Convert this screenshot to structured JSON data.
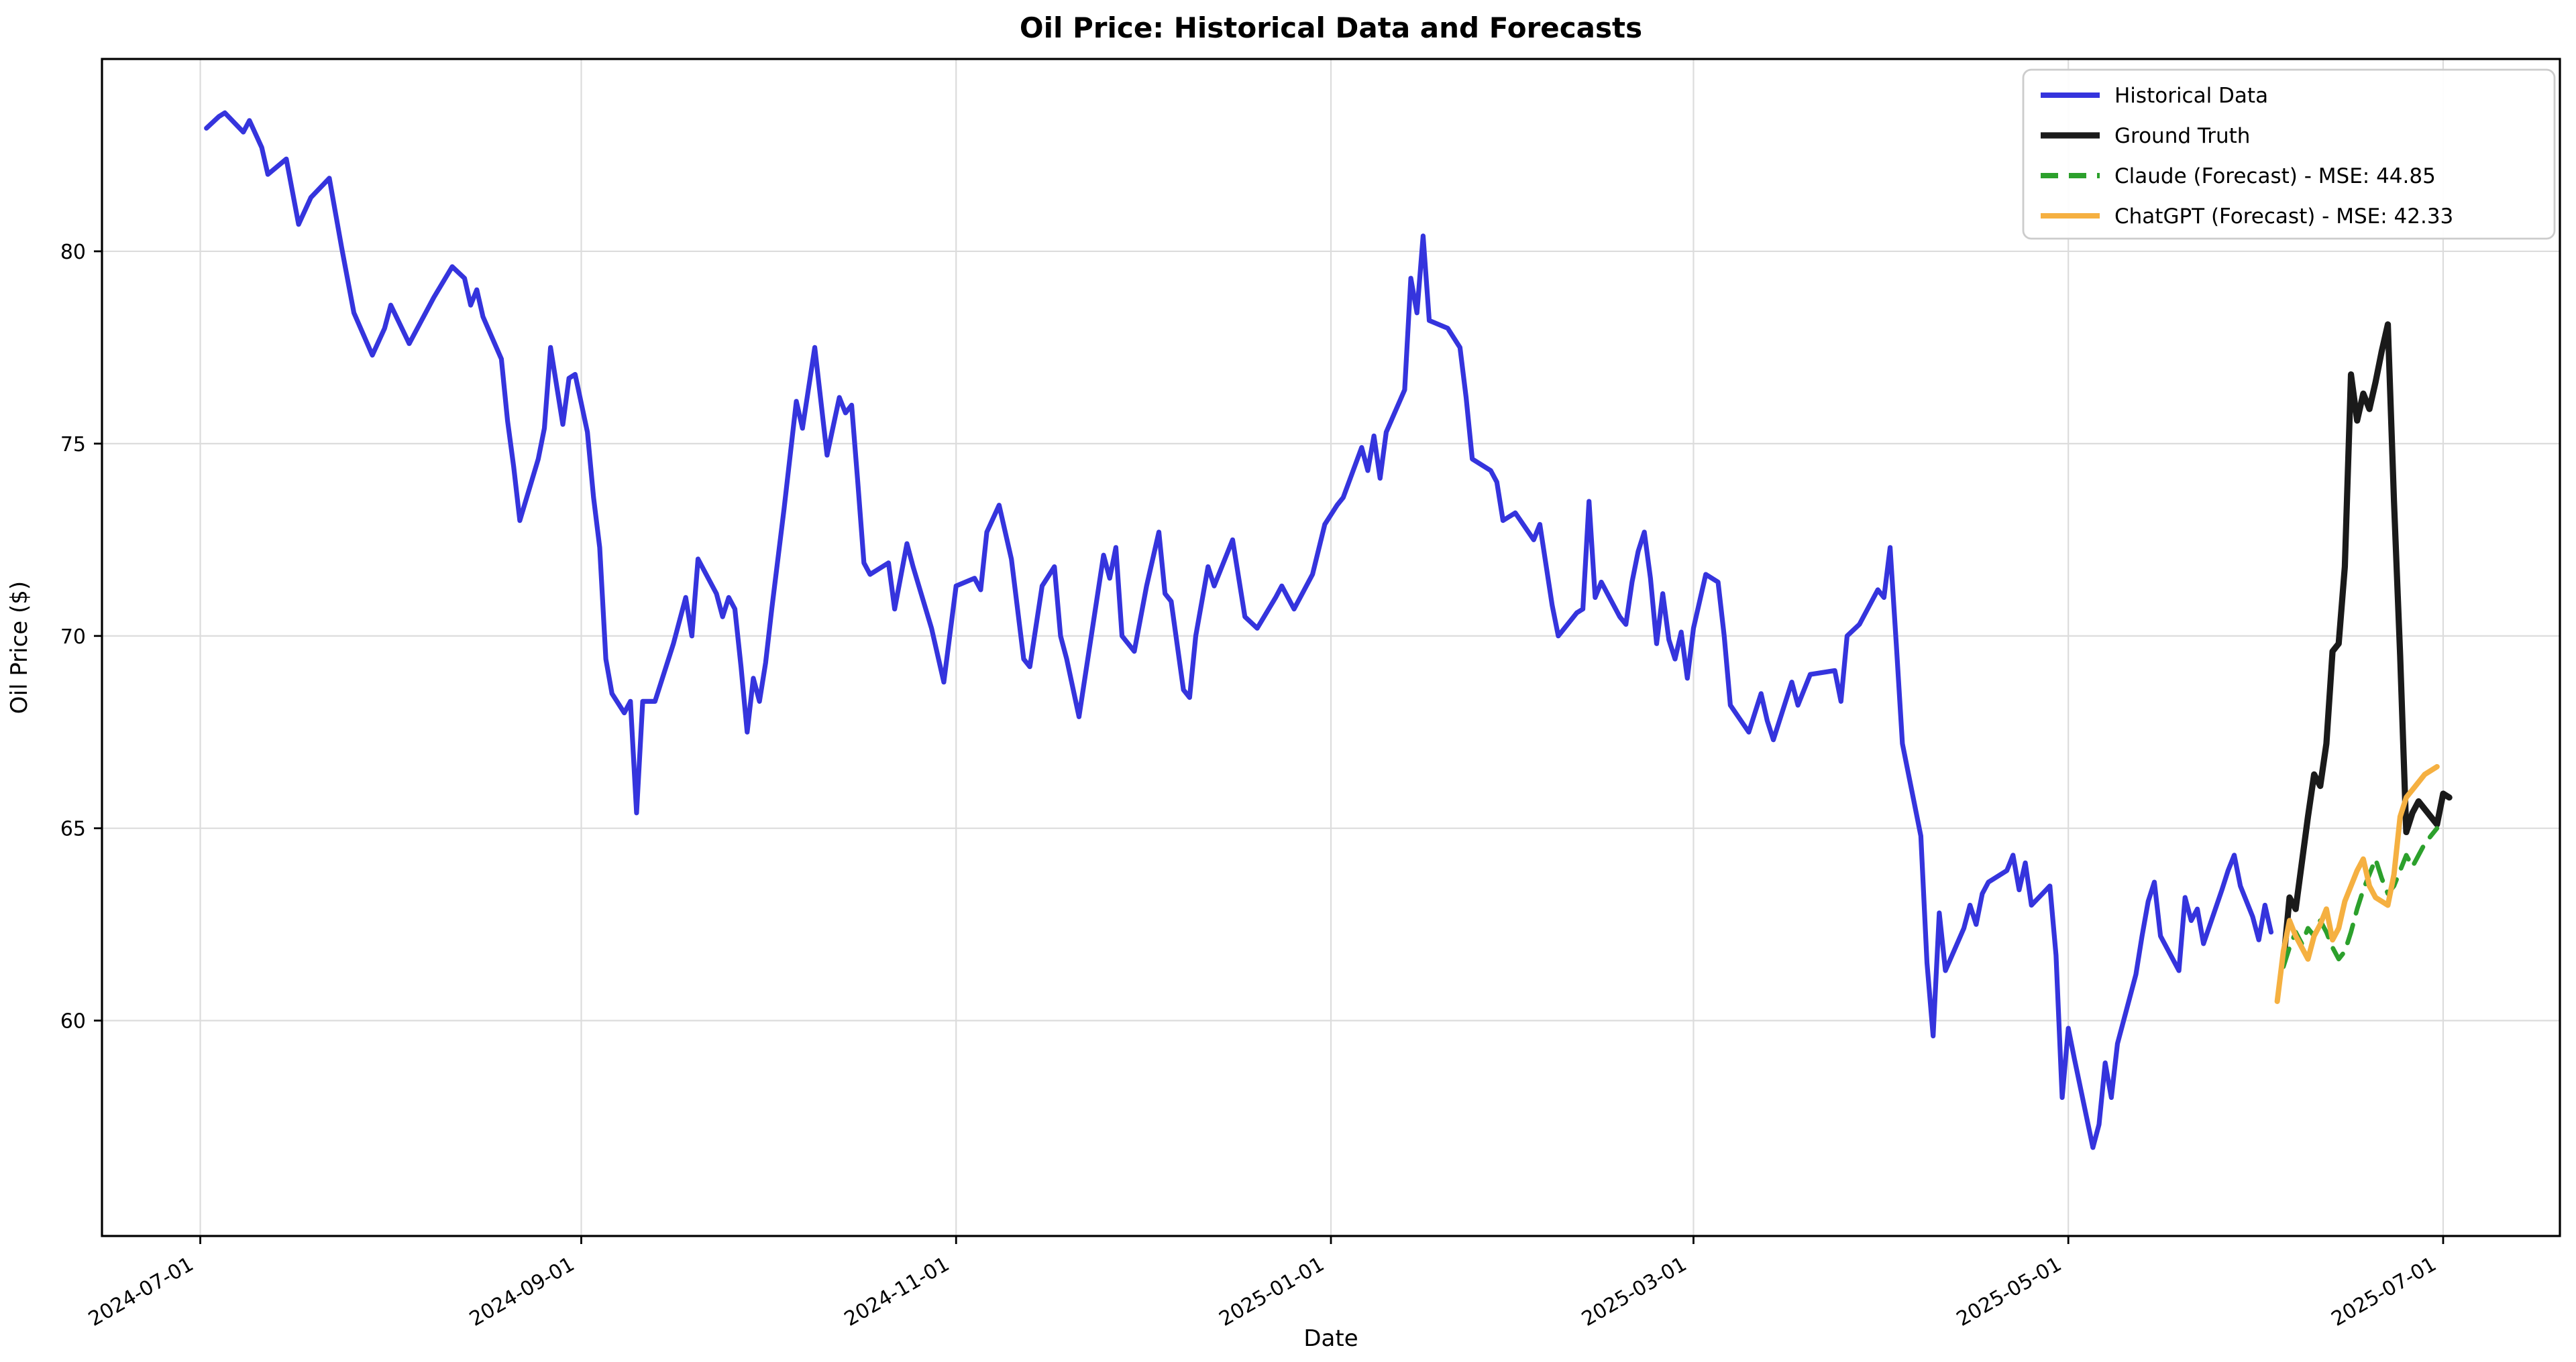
{
  "title": "Oil Price: Historical Data and Forecasts",
  "x_axis": {
    "label": "Date",
    "ticks": [
      "2024-07-01",
      "2024-09-01",
      "2024-11-01",
      "2025-01-01",
      "2025-03-01",
      "2025-05-01",
      "2025-07-01"
    ]
  },
  "y_axis": {
    "label": "Oil Price ($)",
    "ticks": [
      60,
      65,
      70,
      75,
      80
    ]
  },
  "legend": {
    "position": "upper right",
    "items": [
      {
        "label": "Historical Data"
      },
      {
        "label": "Ground Truth"
      },
      {
        "label": "Claude (Forecast) - MSE: 44.85"
      },
      {
        "label": "ChatGPT (Forecast) - MSE: 42.33"
      }
    ]
  },
  "colors": {
    "historical": "#3534dd",
    "ground_truth": "#1a1a1a",
    "claude": "#2ca02c",
    "chatgpt": "#f5b041",
    "grid": "#dcdcdc",
    "spine": "#000000"
  },
  "chart_data": {
    "type": "line",
    "title": "Oil Price: Historical Data and Forecasts",
    "xlabel": "Date",
    "ylabel": "Oil Price ($)",
    "grid": true,
    "legend_position": "upper right",
    "xlim": [
      "2024-06-15",
      "2025-07-20"
    ],
    "ylim": [
      54.4,
      85.0
    ],
    "y_ticks": [
      60,
      65,
      70,
      75,
      80
    ],
    "x_ticks": [
      "2024-07-01",
      "2024-09-01",
      "2024-11-01",
      "2025-01-01",
      "2025-03-01",
      "2025-05-01",
      "2025-07-01"
    ],
    "series": [
      {
        "name": "Historical Data",
        "color": "#3534dd",
        "style": "solid",
        "width": 3.6,
        "x": [
          "2024-07-02",
          "2024-07-04",
          "2024-07-05",
          "2024-07-08",
          "2024-07-09",
          "2024-07-11",
          "2024-07-12",
          "2024-07-15",
          "2024-07-17",
          "2024-07-19",
          "2024-07-22",
          "2024-07-24",
          "2024-07-26",
          "2024-07-29",
          "2024-07-31",
          "2024-08-01",
          "2024-08-04",
          "2024-08-06",
          "2024-08-08",
          "2024-08-11",
          "2024-08-13",
          "2024-08-14",
          "2024-08-15",
          "2024-08-16",
          "2024-08-19",
          "2024-08-20",
          "2024-08-21",
          "2024-08-22",
          "2024-08-25",
          "2024-08-26",
          "2024-08-27",
          "2024-08-29",
          "2024-08-30",
          "2024-08-31",
          "2024-09-02",
          "2024-09-03",
          "2024-09-04",
          "2024-09-05",
          "2024-09-06",
          "2024-09-08",
          "2024-09-09",
          "2024-09-10",
          "2024-09-11",
          "2024-09-13",
          "2024-09-16",
          "2024-09-17",
          "2024-09-18",
          "2024-09-19",
          "2024-09-20",
          "2024-09-23",
          "2024-09-24",
          "2024-09-25",
          "2024-09-26",
          "2024-09-27",
          "2024-09-28",
          "2024-09-29",
          "2024-09-30",
          "2024-10-01",
          "2024-10-02",
          "2024-10-04",
          "2024-10-06",
          "2024-10-07",
          "2024-10-09",
          "2024-10-11",
          "2024-10-13",
          "2024-10-14",
          "2024-10-15",
          "2024-10-16",
          "2024-10-17",
          "2024-10-18",
          "2024-10-21",
          "2024-10-22",
          "2024-10-24",
          "2024-10-25",
          "2024-10-28",
          "2024-10-30",
          "2024-11-01",
          "2024-11-04",
          "2024-11-05",
          "2024-11-06",
          "2024-11-08",
          "2024-11-10",
          "2024-11-12",
          "2024-11-13",
          "2024-11-15",
          "2024-11-17",
          "2024-11-18",
          "2024-11-19",
          "2024-11-21",
          "2024-11-23",
          "2024-11-25",
          "2024-11-26",
          "2024-11-27",
          "2024-11-28",
          "2024-11-30",
          "2024-12-02",
          "2024-12-04",
          "2024-12-05",
          "2024-12-06",
          "2024-12-08",
          "2024-12-09",
          "2024-12-10",
          "2024-12-12",
          "2024-12-13",
          "2024-12-16",
          "2024-12-18",
          "2024-12-20",
          "2024-12-23",
          "2024-12-24",
          "2024-12-26",
          "2024-12-29",
          "2024-12-31",
          "2025-01-02",
          "2025-01-03",
          "2025-01-06",
          "2025-01-07",
          "2025-01-08",
          "2025-01-09",
          "2025-01-10",
          "2025-01-13",
          "2025-01-14",
          "2025-01-15",
          "2025-01-16",
          "2025-01-17",
          "2025-01-20",
          "2025-01-22",
          "2025-01-23",
          "2025-01-24",
          "2025-01-27",
          "2025-01-28",
          "2025-01-29",
          "2025-01-31",
          "2025-02-03",
          "2025-02-04",
          "2025-02-06",
          "2025-02-07",
          "2025-02-10",
          "2025-02-11",
          "2025-02-12",
          "2025-02-13",
          "2025-02-14",
          "2025-02-17",
          "2025-02-18",
          "2025-02-19",
          "2025-02-20",
          "2025-02-21",
          "2025-02-22",
          "2025-02-23",
          "2025-02-24",
          "2025-02-25",
          "2025-02-26",
          "2025-02-27",
          "2025-02-28",
          "2025-03-01",
          "2025-03-03",
          "2025-03-05",
          "2025-03-06",
          "2025-03-07",
          "2025-03-10",
          "2025-03-12",
          "2025-03-13",
          "2025-03-14",
          "2025-03-17",
          "2025-03-18",
          "2025-03-20",
          "2025-03-24",
          "2025-03-25",
          "2025-03-26",
          "2025-03-28",
          "2025-03-31",
          "2025-04-01",
          "2025-04-02",
          "2025-04-03",
          "2025-04-04",
          "2025-04-07",
          "2025-04-08",
          "2025-04-09",
          "2025-04-10",
          "2025-04-11",
          "2025-04-14",
          "2025-04-15",
          "2025-04-16",
          "2025-04-17",
          "2025-04-18",
          "2025-04-21",
          "2025-04-22",
          "2025-04-23",
          "2025-04-24",
          "2025-04-25",
          "2025-04-28",
          "2025-04-29",
          "2025-04-30",
          "2025-05-01",
          "2025-05-02",
          "2025-05-05",
          "2025-05-06",
          "2025-05-07",
          "2025-05-08",
          "2025-05-09",
          "2025-05-12",
          "2025-05-13",
          "2025-05-14",
          "2025-05-15",
          "2025-05-16",
          "2025-05-19",
          "2025-05-20",
          "2025-05-21",
          "2025-05-22",
          "2025-05-23",
          "2025-05-26",
          "2025-05-27",
          "2025-05-28",
          "2025-05-29",
          "2025-05-30",
          "2025-05-31",
          "2025-06-01",
          "2025-06-02",
          "2025-06-03"
        ],
        "y": [
          83.2,
          83.5,
          83.6,
          83.1,
          83.4,
          82.7,
          82.0,
          82.4,
          80.7,
          81.4,
          81.9,
          80.1,
          78.4,
          77.3,
          78.0,
          78.6,
          77.6,
          78.2,
          78.8,
          79.6,
          79.3,
          78.6,
          79.0,
          78.3,
          77.2,
          75.6,
          74.4,
          73.0,
          74.6,
          75.4,
          77.5,
          75.5,
          76.7,
          76.8,
          75.3,
          73.6,
          72.3,
          69.4,
          68.5,
          68.0,
          68.3,
          65.4,
          68.3,
          68.3,
          69.8,
          70.4,
          71.0,
          70.0,
          72.0,
          71.1,
          70.5,
          71.0,
          70.7,
          69.2,
          67.5,
          68.9,
          68.3,
          69.3,
          70.7,
          73.3,
          76.1,
          75.4,
          77.5,
          74.7,
          76.2,
          75.8,
          76.0,
          74.0,
          71.9,
          71.6,
          71.9,
          70.7,
          72.4,
          71.8,
          70.2,
          68.8,
          71.3,
          71.5,
          71.2,
          72.7,
          73.4,
          72.0,
          69.4,
          69.2,
          71.3,
          71.8,
          70.0,
          69.4,
          67.9,
          70.0,
          72.1,
          71.5,
          72.3,
          70.0,
          69.6,
          71.3,
          72.7,
          71.1,
          70.9,
          68.6,
          68.4,
          70.0,
          71.8,
          71.3,
          72.5,
          70.5,
          70.2,
          71.0,
          71.3,
          70.7,
          71.6,
          72.9,
          73.4,
          73.6,
          74.9,
          74.3,
          75.2,
          74.1,
          75.3,
          76.4,
          79.3,
          78.4,
          80.4,
          78.2,
          78.0,
          77.5,
          76.2,
          74.6,
          74.3,
          74.0,
          73.0,
          73.2,
          72.5,
          72.9,
          70.8,
          70.0,
          70.6,
          70.7,
          73.5,
          71.0,
          71.4,
          70.5,
          70.3,
          71.4,
          72.2,
          72.7,
          71.5,
          69.8,
          71.1,
          69.9,
          69.4,
          70.1,
          68.9,
          70.2,
          71.6,
          71.4,
          70.0,
          68.2,
          67.5,
          68.5,
          67.8,
          67.3,
          68.8,
          68.2,
          69.0,
          69.1,
          68.3,
          70.0,
          70.3,
          71.2,
          71.0,
          72.3,
          69.8,
          67.2,
          64.8,
          61.5,
          59.6,
          62.8,
          61.3,
          62.4,
          63.0,
          62.5,
          63.3,
          63.6,
          63.9,
          64.3,
          63.4,
          64.1,
          63.0,
          63.5,
          61.7,
          58.0,
          59.8,
          59.0,
          56.7,
          57.3,
          58.9,
          58.0,
          59.4,
          61.2,
          62.2,
          63.1,
          63.6,
          62.2,
          61.3,
          63.2,
          62.6,
          62.9,
          62.0,
          63.4,
          63.9,
          64.3,
          63.5,
          63.1,
          62.7,
          62.1,
          63.0,
          62.3
        ]
      },
      {
        "name": "Ground Truth",
        "color": "#1a1a1a",
        "style": "solid",
        "width": 4.6,
        "x": [
          "2025-06-05",
          "2025-06-06",
          "2025-06-07",
          "2025-06-08",
          "2025-06-09",
          "2025-06-10",
          "2025-06-11",
          "2025-06-12",
          "2025-06-13",
          "2025-06-14",
          "2025-06-15",
          "2025-06-16",
          "2025-06-17",
          "2025-06-18",
          "2025-06-19",
          "2025-06-20",
          "2025-06-21",
          "2025-06-22",
          "2025-06-23",
          "2025-06-24",
          "2025-06-25",
          "2025-06-26",
          "2025-06-27",
          "2025-06-28",
          "2025-06-29",
          "2025-06-30",
          "2025-07-01",
          "2025-07-02"
        ],
        "y": [
          61.5,
          63.2,
          62.9,
          64.1,
          65.3,
          66.4,
          66.1,
          67.2,
          69.6,
          69.8,
          71.8,
          76.8,
          75.6,
          76.3,
          75.9,
          76.6,
          77.4,
          78.1,
          73.5,
          69.5,
          64.9,
          65.4,
          65.7,
          65.5,
          65.3,
          65.1,
          65.9,
          65.8
        ]
      },
      {
        "name": "Claude (Forecast) - MSE: 44.85",
        "mse": 44.85,
        "color": "#2ca02c",
        "style": "dashed",
        "width": 3.4,
        "x": [
          "2025-06-05",
          "2025-06-06",
          "2025-06-07",
          "2025-06-08",
          "2025-06-09",
          "2025-06-10",
          "2025-06-11",
          "2025-06-12",
          "2025-06-13",
          "2025-06-14",
          "2025-06-15",
          "2025-06-16",
          "2025-06-17",
          "2025-06-18",
          "2025-06-19",
          "2025-06-20",
          "2025-06-21",
          "2025-06-22",
          "2025-06-23",
          "2025-06-24",
          "2025-06-25",
          "2025-06-26",
          "2025-06-27",
          "2025-06-28",
          "2025-06-29",
          "2025-06-30"
        ],
        "y": [
          61.4,
          61.9,
          62.3,
          62.0,
          62.4,
          62.2,
          62.6,
          62.3,
          61.9,
          61.6,
          61.8,
          62.3,
          62.9,
          63.4,
          63.8,
          64.2,
          63.7,
          63.3,
          63.5,
          63.9,
          64.3,
          64.0,
          64.3,
          64.6,
          64.8,
          65.0
        ]
      },
      {
        "name": "ChatGPT (Forecast) - MSE: 42.33",
        "mse": 42.33,
        "color": "#f5b041",
        "style": "solid",
        "width": 4.0,
        "x": [
          "2025-06-04",
          "2025-06-05",
          "2025-06-06",
          "2025-06-07",
          "2025-06-08",
          "2025-06-09",
          "2025-06-10",
          "2025-06-11",
          "2025-06-12",
          "2025-06-13",
          "2025-06-14",
          "2025-06-15",
          "2025-06-16",
          "2025-06-17",
          "2025-06-18",
          "2025-06-19",
          "2025-06-20",
          "2025-06-21",
          "2025-06-22",
          "2025-06-23",
          "2025-06-24",
          "2025-06-25",
          "2025-06-26",
          "2025-06-27",
          "2025-06-28",
          "2025-06-29",
          "2025-06-30"
        ],
        "y": [
          60.5,
          61.8,
          62.6,
          62.2,
          61.9,
          61.6,
          62.2,
          62.5,
          62.9,
          62.1,
          62.4,
          63.1,
          63.5,
          63.9,
          64.2,
          63.5,
          63.2,
          63.1,
          63.0,
          63.8,
          65.3,
          65.8,
          66.0,
          66.2,
          66.4,
          66.5,
          66.6
        ]
      }
    ]
  }
}
